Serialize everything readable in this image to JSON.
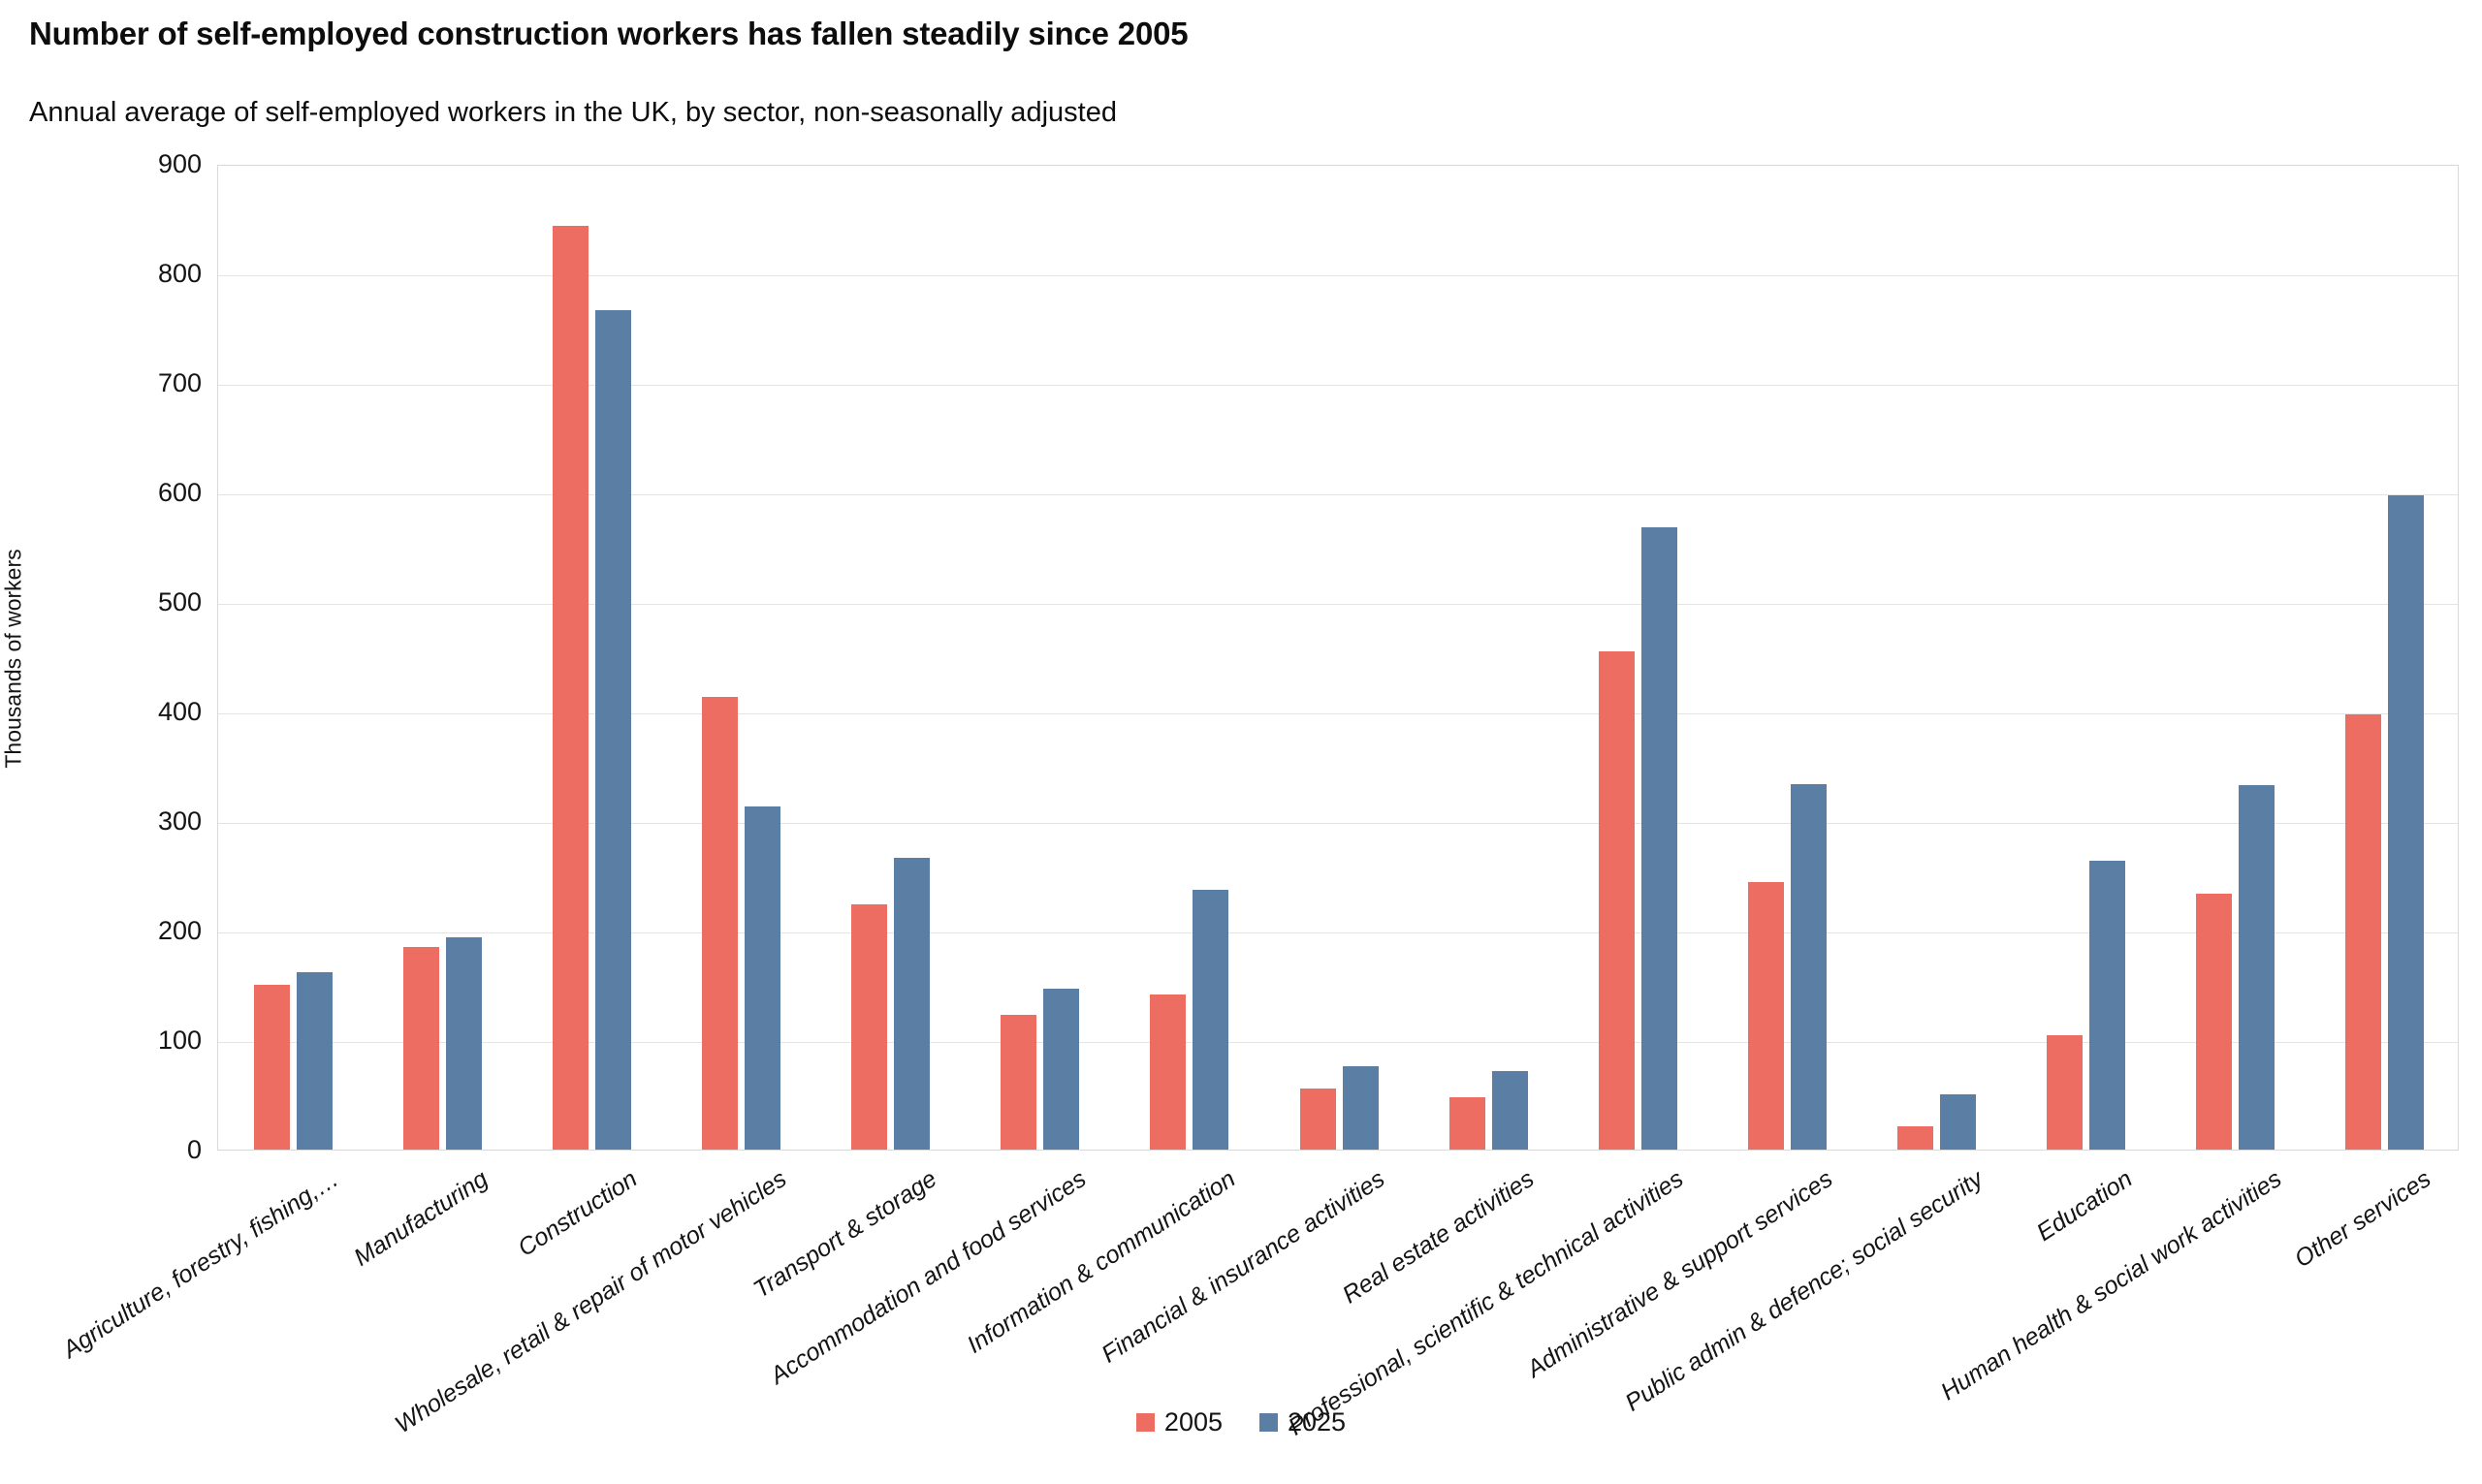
{
  "chart_data": {
    "type": "bar",
    "title": "Number of self-employed construction workers has fallen steadily since 2005",
    "subtitle": "Annual average of self-employed workers in the UK, by sector, non-seasonally adjusted",
    "ylabel": "Thousands of workers",
    "ylim": [
      0,
      900
    ],
    "ytick_step": 100,
    "grid": true,
    "legend_position": "bottom",
    "categories": [
      "Agriculture, forestry, fishing,…",
      "Manufacturing",
      "Construction",
      "Wholesale, retail & repair of motor vehicles",
      "Transport & storage",
      "Accommodation and food services",
      "Information & communication",
      "Financial & insurance activities",
      "Real estate activities",
      "Professional, scientific & technical activities",
      "Administrative & support services",
      "Public admin & defence; social security",
      "Education",
      "Human health & social work activities",
      "Other services"
    ],
    "series": [
      {
        "name": "2005",
        "color": "#ed6d62",
        "values": [
          150,
          185,
          843,
          413,
          224,
          123,
          142,
          56,
          48,
          455,
          244,
          21,
          104,
          234,
          397
        ]
      },
      {
        "name": "2025",
        "color": "#5b7ea4",
        "values": [
          162,
          194,
          766,
          313,
          266,
          147,
          237,
          76,
          72,
          568,
          334,
          50,
          264,
          333,
          597
        ]
      }
    ]
  }
}
